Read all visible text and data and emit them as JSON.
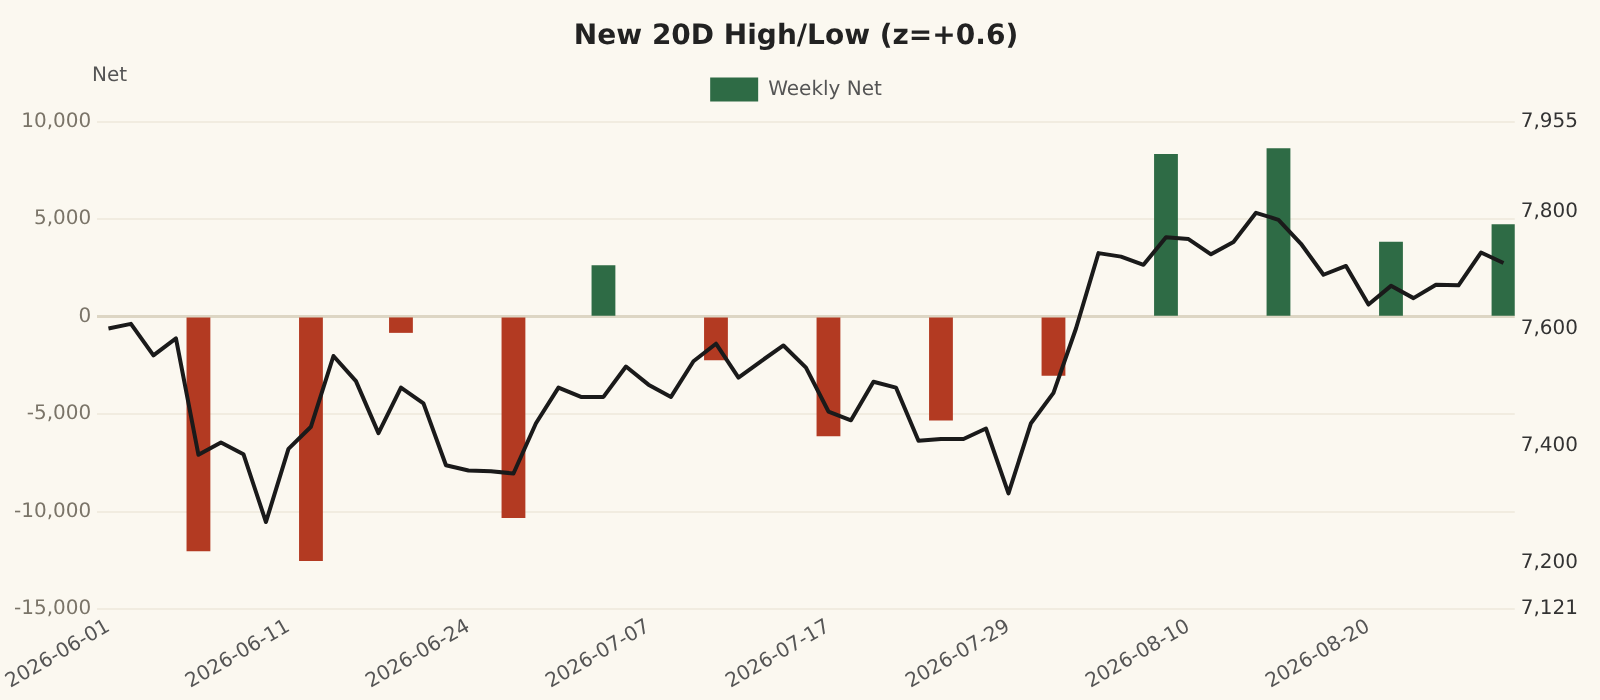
{
  "chart_data": {
    "type": "bar",
    "title": "New 20D High/Low (z=+0.6)",
    "ylabel": "Net",
    "categories": [
      "2026-06-01",
      null,
      null,
      null,
      null,
      null,
      null,
      null,
      "2026-06-11",
      null,
      null,
      null,
      null,
      null,
      null,
      null,
      "2026-06-24",
      null,
      null,
      null,
      null,
      null,
      null,
      null,
      "2026-07-07",
      null,
      null,
      null,
      null,
      null,
      null,
      null,
      "2026-07-17",
      null,
      null,
      null,
      null,
      null,
      null,
      null,
      "2026-07-29",
      null,
      null,
      null,
      null,
      null,
      null,
      null,
      "2026-08-10",
      null,
      null,
      null,
      null,
      null,
      null,
      null,
      "2026-08-20",
      null,
      null,
      null,
      null,
      null,
      null
    ],
    "series": [
      {
        "name": "Weekly Net",
        "color": "#2e6b45",
        "colors": [
          null,
          null,
          null,
          null,
          "#b33a22",
          null,
          null,
          null,
          null,
          "#b33a22",
          null,
          null,
          null,
          "#b33a22",
          null,
          null,
          null,
          null,
          "#b33a22",
          null,
          null,
          null,
          "#2e6b45",
          null,
          null,
          null,
          null,
          "#b33a22",
          null,
          null,
          null,
          null,
          "#b33a22",
          null,
          null,
          null,
          null,
          "#b33a22",
          null,
          null,
          null,
          null,
          "#b33a22",
          null,
          null,
          null,
          null,
          "#2e6b45",
          null,
          null,
          null,
          null,
          "#2e6b45",
          null,
          null,
          null,
          null,
          "#2e6b45",
          null,
          null,
          null,
          null,
          "#2e6b45"
        ],
        "values": [
          null,
          null,
          null,
          null,
          -12000,
          null,
          null,
          null,
          null,
          -12500,
          null,
          null,
          null,
          -800,
          null,
          null,
          null,
          null,
          -10300,
          null,
          null,
          null,
          2600,
          null,
          null,
          null,
          null,
          -2200,
          null,
          null,
          null,
          null,
          -6100,
          null,
          null,
          null,
          null,
          -5300,
          null,
          null,
          null,
          null,
          -3000,
          null,
          null,
          null,
          null,
          8300,
          null,
          null,
          null,
          null,
          8600,
          null,
          null,
          null,
          null,
          3800,
          null,
          null,
          null,
          null,
          4700
        ]
      },
      {
        "type": "line",
        "axis": "y2",
        "color": "#1a1a1a",
        "values": [
          7601,
          7609,
          7555,
          7584,
          7385,
          7406,
          7386,
          7270,
          7395,
          7433,
          7554,
          7511,
          7422,
          7500,
          7473,
          7367,
          7358,
          7357,
          7353,
          7439,
          7500,
          7484,
          7484,
          7536,
          7505,
          7484,
          7545,
          7575,
          7517,
          7545,
          7572,
          7534,
          7459,
          7444,
          7510,
          7500,
          7409,
          7412,
          7412,
          7430,
          7319,
          7439,
          7491,
          7601,
          7730,
          7724,
          7710,
          7757,
          7754,
          7728,
          7749,
          7799,
          7787,
          7746,
          7693,
          7708,
          7642,
          7674,
          7653,
          7676,
          7675,
          7731,
          7713
        ]
      }
    ],
    "ylim": [
      -15000,
      10000
    ],
    "yticks": [
      {
        "value": -15000,
        "label": "-15,000"
      },
      {
        "value": -10000,
        "label": "-10,000"
      },
      {
        "value": -5000,
        "label": "-5,000"
      },
      0,
      {
        "value": 5000,
        "label": "5,000"
      },
      {
        "value": 10000,
        "label": "10,000"
      }
    ],
    "y2lim": [
      7121,
      7955
    ],
    "y2ticks": [
      {
        "value": 7121,
        "label": "7,121"
      },
      {
        "value": 7200,
        "label": "7,200"
      },
      {
        "value": 7400,
        "label": "7,400"
      },
      {
        "value": 7600,
        "label": "7,600"
      },
      {
        "value": 7800,
        "label": "7,800"
      },
      {
        "value": 7955,
        "label": "7,955"
      }
    ],
    "grid": "y",
    "legend": "top",
    "marker": "none",
    "line_style": "solid"
  }
}
